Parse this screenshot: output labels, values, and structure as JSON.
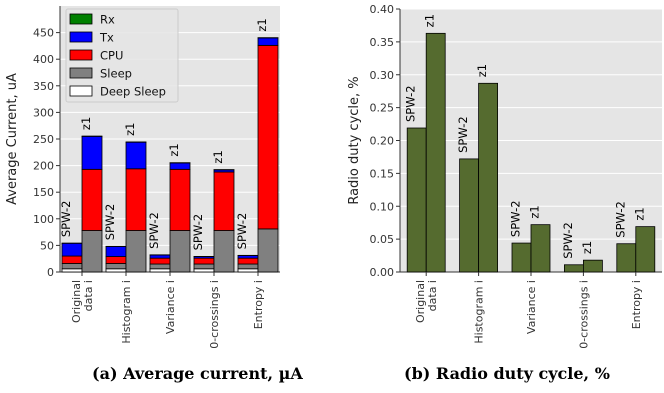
{
  "chart_data": [
    {
      "type": "bar",
      "stacked": true,
      "title": "",
      "caption": "(a) Average current, µA",
      "ylabel": "Average Current, uA",
      "ylim": [
        0,
        500
      ],
      "yticks": [
        0,
        50,
        100,
        150,
        200,
        250,
        300,
        350,
        400,
        450
      ],
      "grid": true,
      "legend_position": "top-left",
      "categories": [
        "Original data i",
        "Histogram i",
        "Variance i",
        "0-crossings i",
        "Entropy i"
      ],
      "category_lines": [
        [
          "Original",
          "data i"
        ],
        [
          "Histogram i"
        ],
        [
          "Variance i"
        ],
        [
          "0-crossings i"
        ],
        [
          "Entropy i"
        ]
      ],
      "bar_labels": [
        "SPW-2",
        "z1"
      ],
      "series_order": [
        "Deep Sleep",
        "Sleep",
        "CPU",
        "Tx",
        "Rx"
      ],
      "series": [
        {
          "name": "Rx",
          "color": "#008000",
          "SPW-2": [
            0.3,
            0.3,
            0.3,
            0.3,
            0.3
          ],
          "z1": [
            0.5,
            0.5,
            0.5,
            0.5,
            0.5
          ]
        },
        {
          "name": "Tx",
          "color": "#0000ff",
          "SPW-2": [
            24,
            19,
            6,
            3,
            5
          ],
          "z1": [
            62,
            50,
            12,
            4,
            14
          ]
        },
        {
          "name": "CPU",
          "color": "#ff0000",
          "SPW-2": [
            14,
            13,
            11,
            11,
            11
          ],
          "z1": [
            115,
            116,
            115,
            110,
            345
          ]
        },
        {
          "name": "Sleep",
          "color": "#808080",
          "SPW-2": [
            10,
            10,
            9,
            9,
            9
          ],
          "z1": [
            78,
            78,
            78,
            78,
            81
          ]
        },
        {
          "name": "Deep Sleep",
          "color": "#ffffff",
          "SPW-2": [
            6,
            6,
            6,
            6,
            6
          ],
          "z1": [
            0,
            0,
            0,
            0,
            0
          ]
        }
      ]
    },
    {
      "type": "bar",
      "title": "",
      "caption": "(b) Radio duty cycle, %",
      "ylabel": "Radio duty cycle, %",
      "ylim": [
        0,
        0.4
      ],
      "yticks": [
        "0.00",
        "0.05",
        "0.10",
        "0.15",
        "0.20",
        "0.25",
        "0.30",
        "0.35",
        "0.40"
      ],
      "grid": true,
      "color": "#556b2f",
      "categories": [
        "Original data i",
        "Histogram i",
        "Variance i",
        "0-crossings i",
        "Entropy i"
      ],
      "category_lines": [
        [
          "Original",
          "data i"
        ],
        [
          "Histogram i"
        ],
        [
          "Variance i"
        ],
        [
          "0-crossings i"
        ],
        [
          "Entropy i"
        ]
      ],
      "bar_labels": [
        "SPW-2",
        "z1"
      ],
      "series": [
        {
          "name": "SPW-2",
          "values": [
            0.219,
            0.172,
            0.044,
            0.011,
            0.043
          ]
        },
        {
          "name": "z1",
          "values": [
            0.363,
            0.287,
            0.072,
            0.018,
            0.069
          ]
        }
      ]
    }
  ]
}
